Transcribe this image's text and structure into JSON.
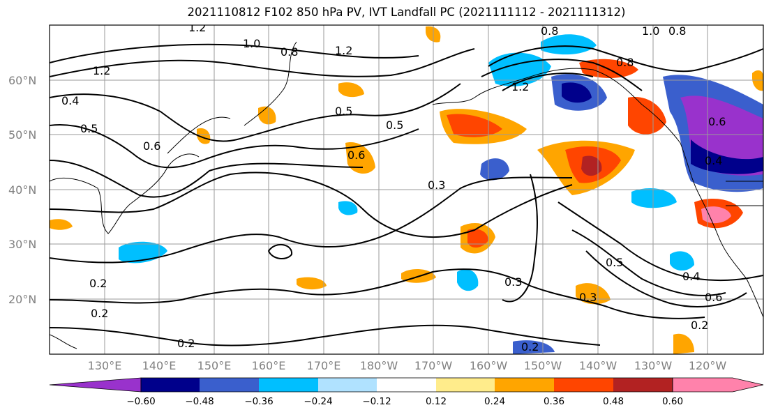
{
  "title": "2021110812 F102 850 hPa PV, IVT Landfall PC (2021111112 - 2021111312)",
  "lat_labels": [
    "60°N",
    "50°N",
    "40°N",
    "30°N",
    "20°N"
  ],
  "lon_labels": [
    "130°E",
    "140°E",
    "150°E",
    "160°E",
    "170°E",
    "180°W",
    "170°W",
    "160°W",
    "150°W",
    "140°W",
    "130°W",
    "120°W"
  ],
  "contour_labels": [
    "1.2",
    "1.2",
    "1.0",
    "0.8",
    "1.2",
    "0.4",
    "0.5",
    "0.6",
    "0.5",
    "0.5",
    "0.6",
    "0.3",
    "0.8",
    "1.0",
    "0.8",
    "1.2",
    "0.8",
    "0.6",
    "0.4",
    "0.2",
    "0.2",
    "0.2",
    "0.3",
    "0.3",
    "0.5",
    "0.4",
    "0.6",
    "0.2",
    "0.2"
  ],
  "colorbar": {
    "ticks": [
      "−0.60",
      "−0.48",
      "−0.36",
      "−0.24",
      "−0.12",
      "0.12",
      "0.24",
      "0.36",
      "0.48",
      "0.60"
    ],
    "colors": [
      "#9932cc",
      "#00008b",
      "#3a5fcd",
      "#00bfff",
      "#b0e2ff",
      "#ffffff",
      "#ffec8b",
      "#ffa500",
      "#ff4500",
      "#b22222",
      "#ff82ab",
      "#ff82ab"
    ]
  }
}
